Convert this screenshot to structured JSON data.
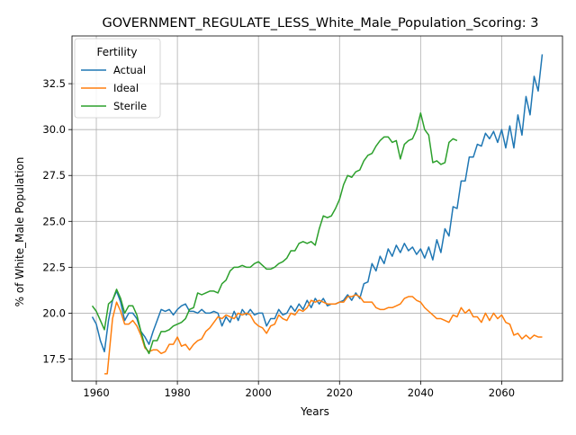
{
  "chart_data": {
    "type": "line",
    "title": "GOVERNMENT_REGULATE_LESS_White_Male_Population_Scoring: 3",
    "xlabel": "Years",
    "ylabel": "% of White_Male Population",
    "xlim": [
      1954,
      2075
    ],
    "ylim": [
      16.3,
      35.1
    ],
    "xticks": [
      1960,
      1980,
      2000,
      2020,
      2040,
      2060
    ],
    "yticks": [
      17.5,
      20.0,
      22.5,
      25.0,
      27.5,
      30.0,
      32.5
    ],
    "grid": true,
    "legend": {
      "title": "Fertility",
      "placement": "top-left"
    },
    "series": [
      {
        "name": "Actual",
        "color": "#1f77b4",
        "points": [
          [
            1959,
            19.8
          ],
          [
            1960,
            19.4
          ],
          [
            1961,
            18.5
          ],
          [
            1962,
            17.9
          ],
          [
            1963,
            19.6
          ],
          [
            1964,
            20.7
          ],
          [
            1965,
            21.2
          ],
          [
            1966,
            20.6
          ],
          [
            1967,
            19.6
          ],
          [
            1968,
            20.0
          ],
          [
            1969,
            20.0
          ],
          [
            1970,
            19.7
          ],
          [
            1971,
            19.0
          ],
          [
            1972,
            18.7
          ],
          [
            1973,
            18.3
          ],
          [
            1974,
            19.0
          ],
          [
            1975,
            19.6
          ],
          [
            1976,
            20.2
          ],
          [
            1977,
            20.1
          ],
          [
            1978,
            20.2
          ],
          [
            1979,
            19.9
          ],
          [
            1980,
            20.2
          ],
          [
            1981,
            20.4
          ],
          [
            1982,
            20.5
          ],
          [
            1983,
            20.1
          ],
          [
            1984,
            20.1
          ],
          [
            1985,
            20.0
          ],
          [
            1986,
            20.2
          ],
          [
            1987,
            20.0
          ],
          [
            1988,
            20.0
          ],
          [
            1989,
            20.1
          ],
          [
            1990,
            20.0
          ],
          [
            1991,
            19.3
          ],
          [
            1992,
            19.8
          ],
          [
            1993,
            19.5
          ],
          [
            1994,
            20.1
          ],
          [
            1995,
            19.6
          ],
          [
            1996,
            20.2
          ],
          [
            1997,
            19.9
          ],
          [
            1998,
            20.2
          ],
          [
            1999,
            19.9
          ],
          [
            2000,
            20.0
          ],
          [
            2001,
            20.0
          ],
          [
            2002,
            19.3
          ],
          [
            2003,
            19.7
          ],
          [
            2004,
            19.7
          ],
          [
            2005,
            20.2
          ],
          [
            2006,
            19.9
          ],
          [
            2007,
            20.0
          ],
          [
            2008,
            20.4
          ],
          [
            2009,
            20.1
          ],
          [
            2010,
            20.5
          ],
          [
            2011,
            20.2
          ],
          [
            2012,
            20.7
          ],
          [
            2013,
            20.3
          ],
          [
            2014,
            20.8
          ],
          [
            2015,
            20.5
          ],
          [
            2016,
            20.8
          ],
          [
            2017,
            20.4
          ],
          [
            2018,
            20.5
          ],
          [
            2019,
            20.5
          ],
          [
            2020,
            20.6
          ],
          [
            2021,
            20.7
          ],
          [
            2022,
            21.0
          ],
          [
            2023,
            20.7
          ],
          [
            2024,
            21.1
          ],
          [
            2025,
            20.8
          ],
          [
            2026,
            21.6
          ],
          [
            2027,
            21.7
          ],
          [
            2028,
            22.7
          ],
          [
            2029,
            22.3
          ],
          [
            2030,
            23.1
          ],
          [
            2031,
            22.7
          ],
          [
            2032,
            23.5
          ],
          [
            2033,
            23.1
          ],
          [
            2034,
            23.7
          ],
          [
            2035,
            23.3
          ],
          [
            2036,
            23.8
          ],
          [
            2037,
            23.4
          ],
          [
            2038,
            23.6
          ],
          [
            2039,
            23.2
          ],
          [
            2040,
            23.5
          ],
          [
            2041,
            23.0
          ],
          [
            2042,
            23.6
          ],
          [
            2043,
            22.9
          ],
          [
            2044,
            24.0
          ],
          [
            2045,
            23.3
          ],
          [
            2046,
            24.6
          ],
          [
            2047,
            24.2
          ],
          [
            2048,
            25.8
          ],
          [
            2049,
            25.7
          ],
          [
            2050,
            27.2
          ],
          [
            2051,
            27.2
          ],
          [
            2052,
            28.5
          ],
          [
            2053,
            28.5
          ],
          [
            2054,
            29.2
          ],
          [
            2055,
            29.1
          ],
          [
            2056,
            29.8
          ],
          [
            2057,
            29.5
          ],
          [
            2058,
            29.9
          ],
          [
            2059,
            29.3
          ],
          [
            2060,
            30.0
          ],
          [
            2061,
            29.0
          ],
          [
            2062,
            30.2
          ],
          [
            2063,
            29.0
          ],
          [
            2064,
            30.8
          ],
          [
            2065,
            29.7
          ],
          [
            2066,
            31.8
          ],
          [
            2067,
            30.8
          ],
          [
            2068,
            32.9
          ],
          [
            2069,
            32.1
          ],
          [
            2070,
            34.1
          ]
        ]
      },
      {
        "name": "Ideal",
        "color": "#ff7f0e",
        "points": [
          [
            1962,
            16.7
          ],
          [
            1962.7,
            16.7
          ],
          [
            1963,
            17.4
          ],
          [
            1964,
            19.7
          ],
          [
            1965,
            20.6
          ],
          [
            1966,
            20.1
          ],
          [
            1967,
            19.4
          ],
          [
            1968,
            19.4
          ],
          [
            1969,
            19.6
          ],
          [
            1970,
            19.3
          ],
          [
            1971,
            18.8
          ],
          [
            1972,
            18.1
          ],
          [
            1973,
            17.9
          ],
          [
            1974,
            18.0
          ],
          [
            1975,
            18.0
          ],
          [
            1976,
            17.8
          ],
          [
            1977,
            17.9
          ],
          [
            1978,
            18.3
          ],
          [
            1979,
            18.3
          ],
          [
            1980,
            18.7
          ],
          [
            1981,
            18.2
          ],
          [
            1982,
            18.3
          ],
          [
            1983,
            18.0
          ],
          [
            1984,
            18.3
          ],
          [
            1985,
            18.5
          ],
          [
            1986,
            18.6
          ],
          [
            1987,
            19.0
          ],
          [
            1988,
            19.2
          ],
          [
            1989,
            19.5
          ],
          [
            1990,
            19.8
          ],
          [
            1991,
            19.7
          ],
          [
            1992,
            19.9
          ],
          [
            1993,
            19.8
          ],
          [
            1994,
            19.7
          ],
          [
            1995,
            20.0
          ],
          [
            1996,
            19.9
          ],
          [
            1997,
            20.0
          ],
          [
            1998,
            19.9
          ],
          [
            1999,
            19.5
          ],
          [
            2000,
            19.3
          ],
          [
            2001,
            19.2
          ],
          [
            2002,
            18.9
          ],
          [
            2003,
            19.3
          ],
          [
            2004,
            19.4
          ],
          [
            2005,
            19.9
          ],
          [
            2006,
            19.7
          ],
          [
            2007,
            19.6
          ],
          [
            2008,
            20.0
          ],
          [
            2009,
            19.9
          ],
          [
            2010,
            20.2
          ],
          [
            2011,
            20.1
          ],
          [
            2012,
            20.3
          ],
          [
            2013,
            20.7
          ],
          [
            2014,
            20.6
          ],
          [
            2015,
            20.7
          ],
          [
            2016,
            20.6
          ],
          [
            2017,
            20.5
          ],
          [
            2018,
            20.5
          ],
          [
            2019,
            20.5
          ],
          [
            2020,
            20.6
          ],
          [
            2021,
            20.6
          ],
          [
            2022,
            20.9
          ],
          [
            2023,
            20.9
          ],
          [
            2024,
            21.0
          ],
          [
            2025,
            20.9
          ],
          [
            2026,
            20.6
          ],
          [
            2027,
            20.6
          ],
          [
            2028,
            20.6
          ],
          [
            2029,
            20.3
          ],
          [
            2030,
            20.2
          ],
          [
            2031,
            20.2
          ],
          [
            2032,
            20.3
          ],
          [
            2033,
            20.3
          ],
          [
            2034,
            20.4
          ],
          [
            2035,
            20.5
          ],
          [
            2036,
            20.8
          ],
          [
            2037,
            20.9
          ],
          [
            2038,
            20.9
          ],
          [
            2039,
            20.7
          ],
          [
            2040,
            20.6
          ],
          [
            2041,
            20.3
          ],
          [
            2042,
            20.1
          ],
          [
            2043,
            19.9
          ],
          [
            2044,
            19.7
          ],
          [
            2045,
            19.7
          ],
          [
            2046,
            19.6
          ],
          [
            2047,
            19.5
          ],
          [
            2048,
            19.9
          ],
          [
            2049,
            19.8
          ],
          [
            2050,
            20.3
          ],
          [
            2051,
            20.0
          ],
          [
            2052,
            20.2
          ],
          [
            2053,
            19.8
          ],
          [
            2054,
            19.8
          ],
          [
            2055,
            19.5
          ],
          [
            2056,
            20.0
          ],
          [
            2057,
            19.6
          ],
          [
            2058,
            20.0
          ],
          [
            2059,
            19.7
          ],
          [
            2060,
            19.9
          ],
          [
            2061,
            19.5
          ],
          [
            2062,
            19.4
          ],
          [
            2063,
            18.8
          ],
          [
            2064,
            18.9
          ],
          [
            2065,
            18.6
          ],
          [
            2066,
            18.8
          ],
          [
            2067,
            18.6
          ],
          [
            2068,
            18.8
          ],
          [
            2069,
            18.7
          ],
          [
            2070,
            18.7
          ]
        ]
      },
      {
        "name": "Sterile",
        "color": "#2ca02c",
        "points": [
          [
            1959,
            20.4
          ],
          [
            1960,
            20.1
          ],
          [
            1961,
            19.6
          ],
          [
            1962,
            19.1
          ],
          [
            1963,
            20.5
          ],
          [
            1964,
            20.7
          ],
          [
            1965,
            21.3
          ],
          [
            1966,
            20.8
          ],
          [
            1967,
            20.0
          ],
          [
            1968,
            20.4
          ],
          [
            1969,
            20.4
          ],
          [
            1970,
            19.9
          ],
          [
            1971,
            19.0
          ],
          [
            1972,
            18.2
          ],
          [
            1973,
            17.8
          ],
          [
            1974,
            18.5
          ],
          [
            1975,
            18.5
          ],
          [
            1976,
            19.0
          ],
          [
            1977,
            19.0
          ],
          [
            1978,
            19.1
          ],
          [
            1979,
            19.3
          ],
          [
            1980,
            19.4
          ],
          [
            1981,
            19.5
          ],
          [
            1982,
            19.7
          ],
          [
            1983,
            20.2
          ],
          [
            1984,
            20.3
          ],
          [
            1985,
            21.1
          ],
          [
            1986,
            21.0
          ],
          [
            1987,
            21.1
          ],
          [
            1988,
            21.2
          ],
          [
            1989,
            21.2
          ],
          [
            1990,
            21.1
          ],
          [
            1991,
            21.6
          ],
          [
            1992,
            21.8
          ],
          [
            1993,
            22.3
          ],
          [
            1994,
            22.5
          ],
          [
            1995,
            22.5
          ],
          [
            1996,
            22.6
          ],
          [
            1997,
            22.5
          ],
          [
            1998,
            22.5
          ],
          [
            1999,
            22.7
          ],
          [
            2000,
            22.8
          ],
          [
            2001,
            22.6
          ],
          [
            2002,
            22.4
          ],
          [
            2003,
            22.4
          ],
          [
            2004,
            22.5
          ],
          [
            2005,
            22.7
          ],
          [
            2006,
            22.8
          ],
          [
            2007,
            23.0
          ],
          [
            2008,
            23.4
          ],
          [
            2009,
            23.4
          ],
          [
            2010,
            23.8
          ],
          [
            2011,
            23.9
          ],
          [
            2012,
            23.8
          ],
          [
            2013,
            23.9
          ],
          [
            2014,
            23.7
          ],
          [
            2015,
            24.6
          ],
          [
            2016,
            25.3
          ],
          [
            2017,
            25.2
          ],
          [
            2018,
            25.3
          ],
          [
            2019,
            25.7
          ],
          [
            2020,
            26.2
          ],
          [
            2021,
            27.0
          ],
          [
            2022,
            27.5
          ],
          [
            2023,
            27.4
          ],
          [
            2024,
            27.7
          ],
          [
            2025,
            27.8
          ],
          [
            2026,
            28.3
          ],
          [
            2027,
            28.6
          ],
          [
            2028,
            28.7
          ],
          [
            2029,
            29.1
          ],
          [
            2030,
            29.4
          ],
          [
            2031,
            29.6
          ],
          [
            2032,
            29.6
          ],
          [
            2033,
            29.3
          ],
          [
            2034,
            29.4
          ],
          [
            2035,
            28.4
          ],
          [
            2036,
            29.2
          ],
          [
            2037,
            29.4
          ],
          [
            2038,
            29.5
          ],
          [
            2039,
            30.0
          ],
          [
            2040,
            30.9
          ],
          [
            2041,
            30.0
          ],
          [
            2042,
            29.7
          ],
          [
            2043,
            28.2
          ],
          [
            2044,
            28.3
          ],
          [
            2045,
            28.1
          ],
          [
            2046,
            28.2
          ],
          [
            2047,
            29.3
          ],
          [
            2048,
            29.5
          ],
          [
            2049,
            29.4
          ]
        ]
      }
    ]
  }
}
